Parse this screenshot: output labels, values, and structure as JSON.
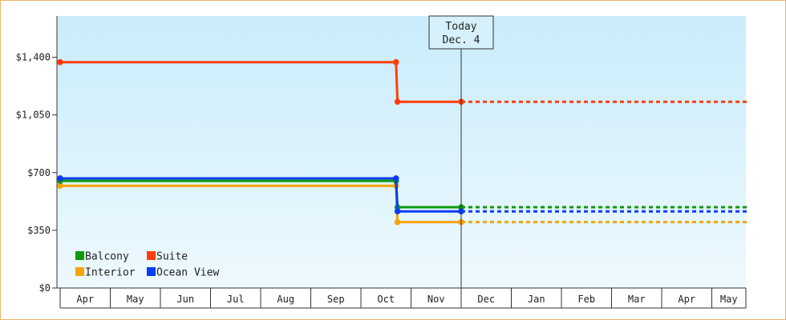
{
  "chart_data": {
    "type": "line",
    "step": true,
    "title": "",
    "xlabel": "",
    "ylabel": "",
    "x_ticks": [
      "Apr",
      "May",
      "Jun",
      "Jul",
      "Aug",
      "Sep",
      "Oct",
      "Nov",
      "Dec",
      "Jan",
      "Feb",
      "Mar",
      "Apr",
      "May"
    ],
    "x_range": [
      "Apr",
      "May"
    ],
    "y_ticks": [
      0,
      350,
      700,
      1050,
      1400
    ],
    "y_tick_labels": [
      "$0",
      "$350",
      "$700",
      "$1,050",
      "$1,400"
    ],
    "ylim": [
      0,
      1650
    ],
    "grid": false,
    "legend_placement": "bottom-left",
    "today_marker": {
      "line1": "Today",
      "line2": "Dec. 4",
      "x_month": 8.0
    },
    "series": [
      {
        "name": "Balcony",
        "color": "#0d9a0d",
        "points": [
          [
            0,
            650
          ],
          [
            6.7,
            650
          ],
          [
            6.73,
            490
          ],
          [
            8.0,
            490
          ]
        ],
        "projection": [
          [
            8.0,
            490
          ],
          [
            13.7,
            490
          ]
        ]
      },
      {
        "name": "Suite",
        "color": "#ff3d0a",
        "points": [
          [
            0,
            1370
          ],
          [
            6.7,
            1370
          ],
          [
            6.73,
            1130
          ],
          [
            8.0,
            1130
          ]
        ],
        "projection": [
          [
            8.0,
            1130
          ],
          [
            13.7,
            1130
          ]
        ]
      },
      {
        "name": "Interior",
        "color": "#f5a30a",
        "points": [
          [
            0,
            620
          ],
          [
            6.7,
            620
          ],
          [
            6.73,
            400
          ],
          [
            8.0,
            400
          ]
        ],
        "projection": [
          [
            8.0,
            400
          ],
          [
            13.7,
            400
          ]
        ]
      },
      {
        "name": "Ocean View",
        "color": "#0a3df5",
        "points": [
          [
            0,
            665
          ],
          [
            6.7,
            665
          ],
          [
            6.73,
            465
          ],
          [
            8.0,
            465
          ]
        ],
        "projection": [
          [
            8.0,
            465
          ],
          [
            13.7,
            465
          ]
        ]
      }
    ]
  }
}
